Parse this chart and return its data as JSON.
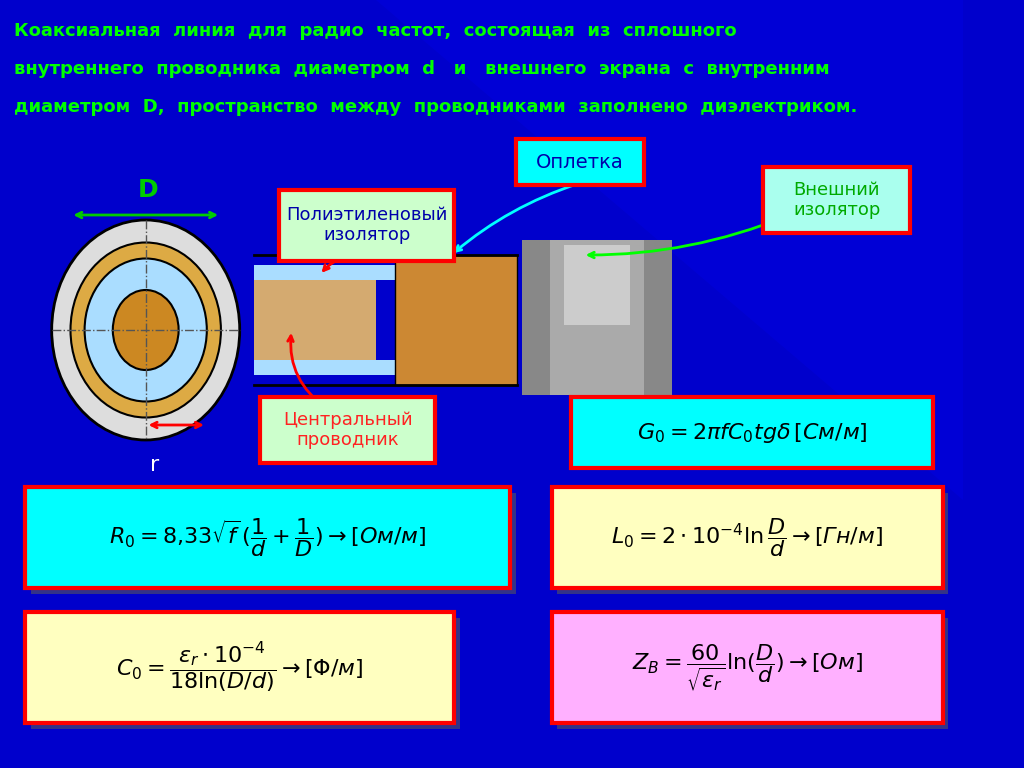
{
  "bg_color": "#0000CC",
  "title_text": "Коаксиальная  линия  для  радио  частот,  состоящая  из  сплошного\nвнутреннего  проводника  диаметром  d   и   внешнего  экрана  с  внутренним\nдиаметром  D,  пространство  между  проводниками  заполнено  диэлектриком.",
  "title_color": "#00FF00",
  "label_oplетка": "Оплетка",
  "label_vneshniy": "Внешний\nизолятор",
  "label_polietilen": "Полиэтиленовый\nизолятор",
  "label_tsentralny": "Центральный\nпроводник",
  "label_D": "D",
  "label_r": "r",
  "formula1": "$R_0 = 8{,}33\\sqrt{f}(\\dfrac{1}{d}+\\dfrac{1}{D})\\rightarrow[Ом/м]$",
  "formula2": "$L_0 = 2\\cdot10^{-4}\\ln\\dfrac{D}{d}\\rightarrow[Гн/м]$",
  "formula3": "$C_0 = \\dfrac{\\varepsilon_r\\cdot10^{-4}}{18\\ln(D/d)}\\rightarrow[Ф/м]$",
  "formula4": "$Z_B = \\dfrac{60}{\\sqrt{\\varepsilon_r}}\\ln(\\dfrac{D}{d})\\rightarrow[Ом]$",
  "formula_G": "$G_0 = 2\\pi f C_0 tg\\delta\\,[См/м]$",
  "box1_color": "#00FFFF",
  "box2_color": "#FFFFC0",
  "box3_color": "#FFFFC0",
  "box4_color": "#FFB0FF",
  "boxG_color": "#00FFFF",
  "box_border_color": "#FF0000"
}
